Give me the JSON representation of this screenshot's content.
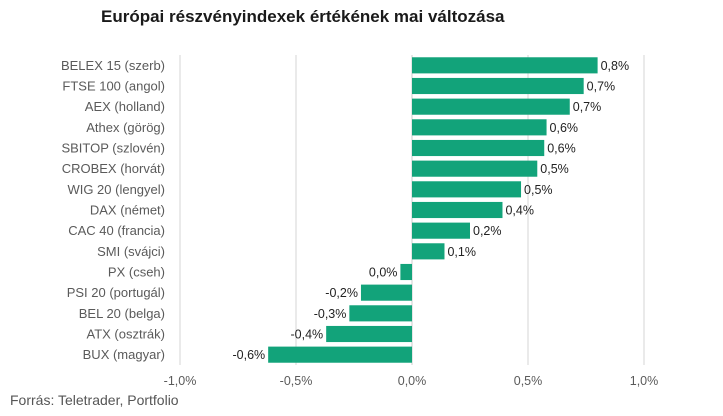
{
  "chart_data": {
    "type": "bar",
    "orientation": "horizontal",
    "title": "Európai részvényindexek értékének mai változása",
    "source": "Forrás: Teletrader, Portfolio",
    "categories": [
      "BELEX 15 (szerb)",
      "FTSE 100 (angol)",
      "AEX (holland)",
      "Athex (görög)",
      "SBITOP (szlovén)",
      "CROBEX (horvát)",
      "WIG 20 (lengyel)",
      "DAX (német)",
      "CAC 40 (francia)",
      "SMI (svájci)",
      "PX (cseh)",
      "PSI 20 (portugál)",
      "BEL 20 (belga)",
      "ATX (osztrák)",
      "BUX (magyar)"
    ],
    "values": [
      0.8,
      0.74,
      0.68,
      0.58,
      0.57,
      0.54,
      0.47,
      0.39,
      0.25,
      0.14,
      -0.05,
      -0.22,
      -0.27,
      -0.37,
      -0.62
    ],
    "data_labels": [
      "0,8%",
      "0,7%",
      "0,7%",
      "0,6%",
      "0,6%",
      "0,5%",
      "0,5%",
      "0,4%",
      "0,2%",
      "0,1%",
      "0,0%",
      "-0,2%",
      "-0,3%",
      "-0,4%",
      "-0,6%"
    ],
    "x_ticks": [
      -1.0,
      -0.5,
      0.0,
      0.5,
      1.0
    ],
    "x_tick_labels": [
      "-1,0%",
      "-0,5%",
      "0,0%",
      "0,5%",
      "1,0%"
    ],
    "xlim": [
      -1.0,
      1.0
    ],
    "grid": "vertical",
    "legend": "none",
    "bar_color": "#12a37a"
  }
}
